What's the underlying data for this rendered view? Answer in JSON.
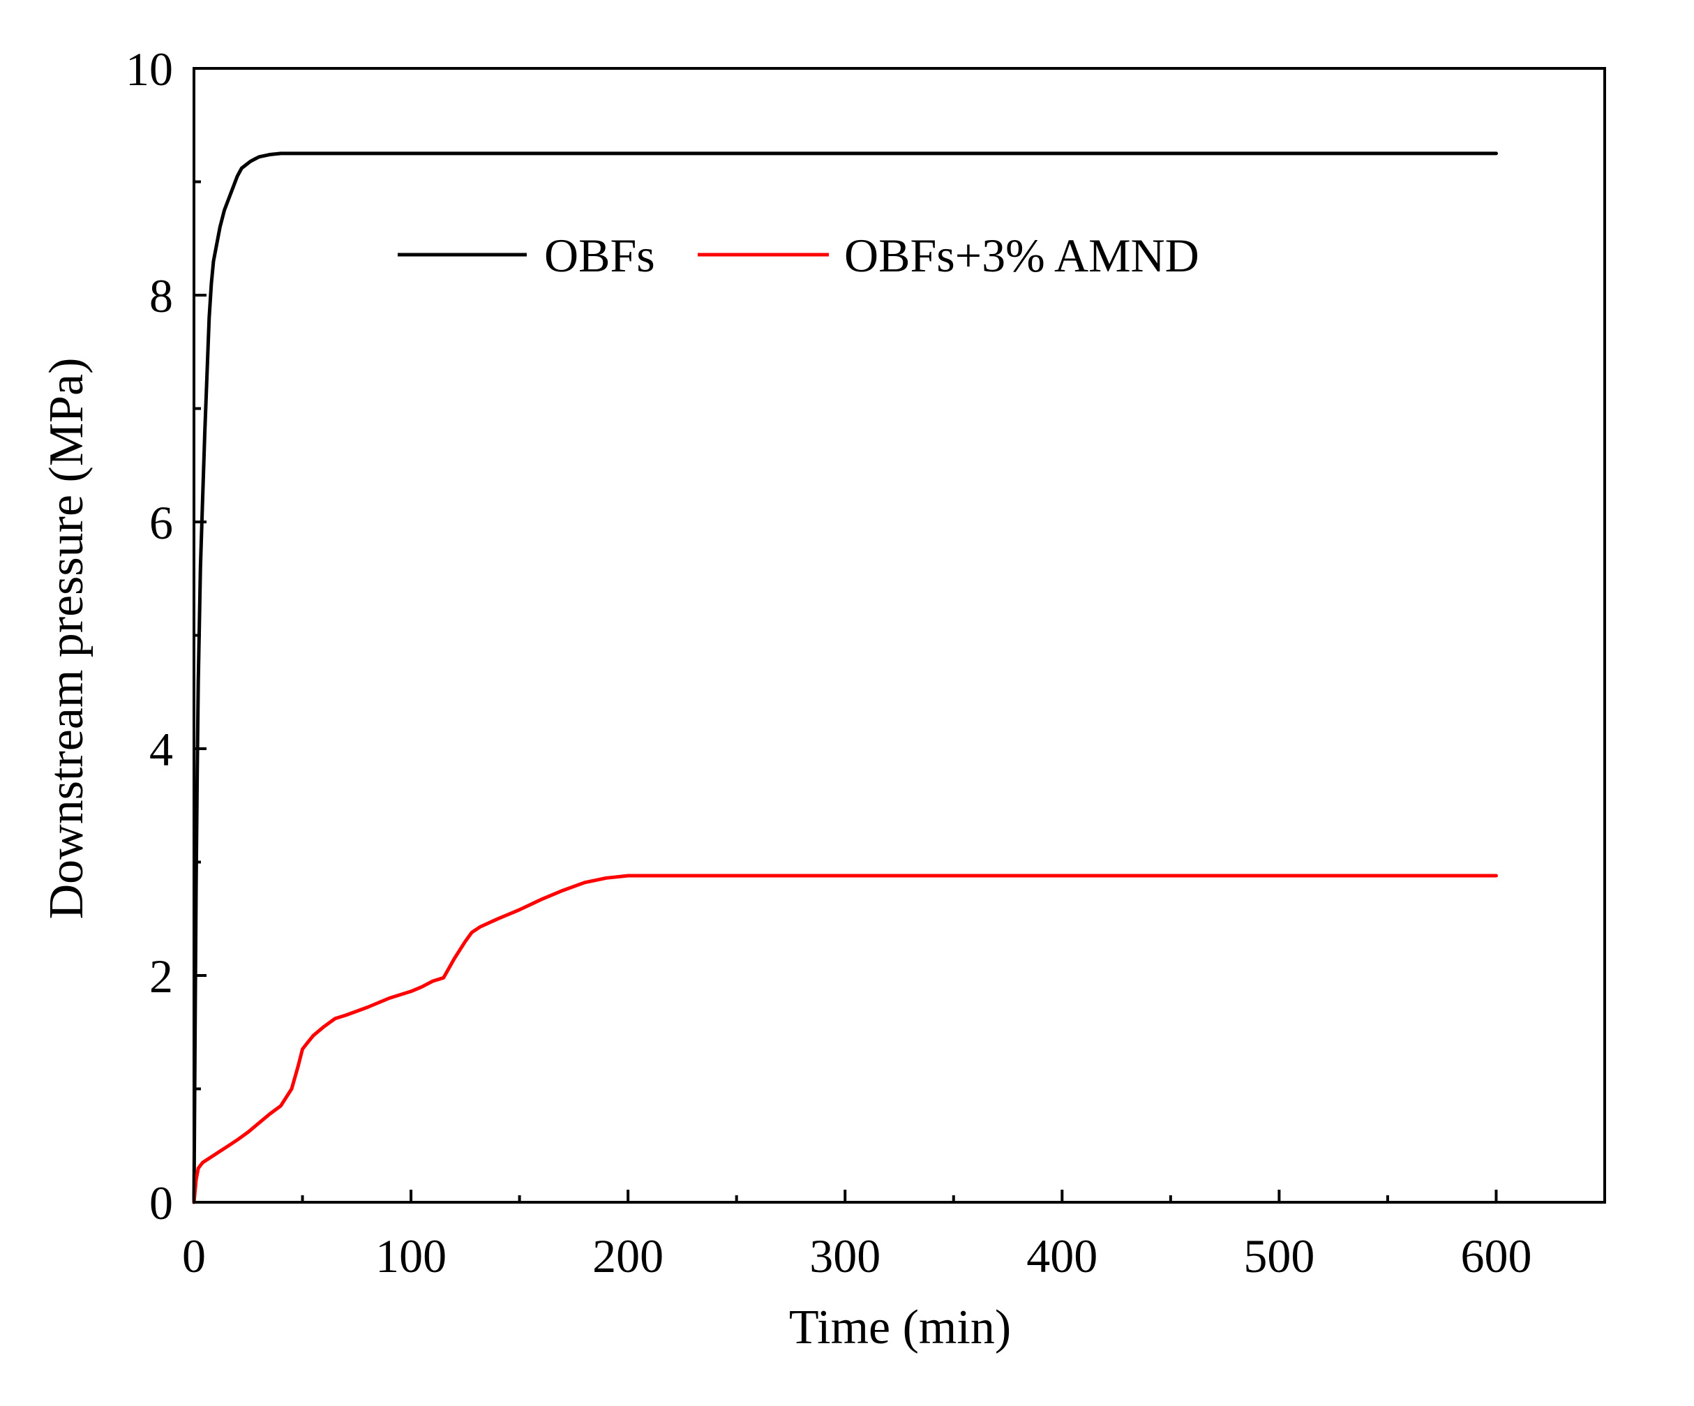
{
  "chart_data": {
    "type": "line",
    "title": "",
    "xlabel": "Time (min)",
    "ylabel": "Downstream pressure (MPa)",
    "xlim": [
      0,
      650
    ],
    "ylim": [
      0,
      10
    ],
    "x_ticks": [
      0,
      100,
      200,
      300,
      400,
      500,
      600
    ],
    "x_tick_labels": [
      "0",
      "100",
      "200",
      "300",
      "400",
      "500",
      "600"
    ],
    "y_ticks": [
      0,
      2,
      4,
      6,
      8,
      10
    ],
    "y_tick_labels": [
      "0",
      "2",
      "4",
      "6",
      "8",
      "10"
    ],
    "x_minor_step": 50,
    "y_minor_step": 1,
    "grid": false,
    "legend_position": "top",
    "series": [
      {
        "name": "OBFs",
        "color": "#000000",
        "x": [
          0,
          0.5,
          1,
          1.5,
          2,
          3,
          4,
          5,
          6,
          7,
          8,
          9,
          10,
          12,
          14,
          16,
          18,
          20,
          22,
          24,
          26,
          28,
          30,
          35,
          40,
          45,
          50,
          100,
          200,
          300,
          400,
          500,
          600
        ],
        "y": [
          0,
          1.5,
          2.8,
          3.8,
          4.6,
          5.6,
          6.2,
          6.8,
          7.3,
          7.8,
          8.1,
          8.3,
          8.4,
          8.6,
          8.75,
          8.85,
          8.95,
          9.05,
          9.12,
          9.15,
          9.18,
          9.2,
          9.22,
          9.24,
          9.25,
          9.25,
          9.25,
          9.25,
          9.25,
          9.25,
          9.25,
          9.25,
          9.25
        ]
      },
      {
        "name": "OBFs+3% AMND",
        "color": "#ff0000",
        "x": [
          0,
          1,
          2,
          4,
          8,
          12,
          16,
          20,
          25,
          30,
          35,
          40,
          45,
          48,
          50,
          52,
          55,
          60,
          65,
          70,
          80,
          90,
          100,
          105,
          110,
          115,
          120,
          125,
          128,
          132,
          140,
          150,
          160,
          170,
          180,
          190,
          200,
          250,
          300,
          400,
          500,
          600
        ],
        "y": [
          0,
          0.2,
          0.3,
          0.35,
          0.4,
          0.45,
          0.5,
          0.55,
          0.62,
          0.7,
          0.78,
          0.85,
          1.0,
          1.2,
          1.35,
          1.4,
          1.47,
          1.55,
          1.62,
          1.65,
          1.72,
          1.8,
          1.86,
          1.9,
          1.95,
          1.98,
          2.15,
          2.3,
          2.38,
          2.43,
          2.5,
          2.58,
          2.67,
          2.75,
          2.82,
          2.86,
          2.88,
          2.88,
          2.88,
          2.88,
          2.88,
          2.88
        ]
      }
    ]
  }
}
